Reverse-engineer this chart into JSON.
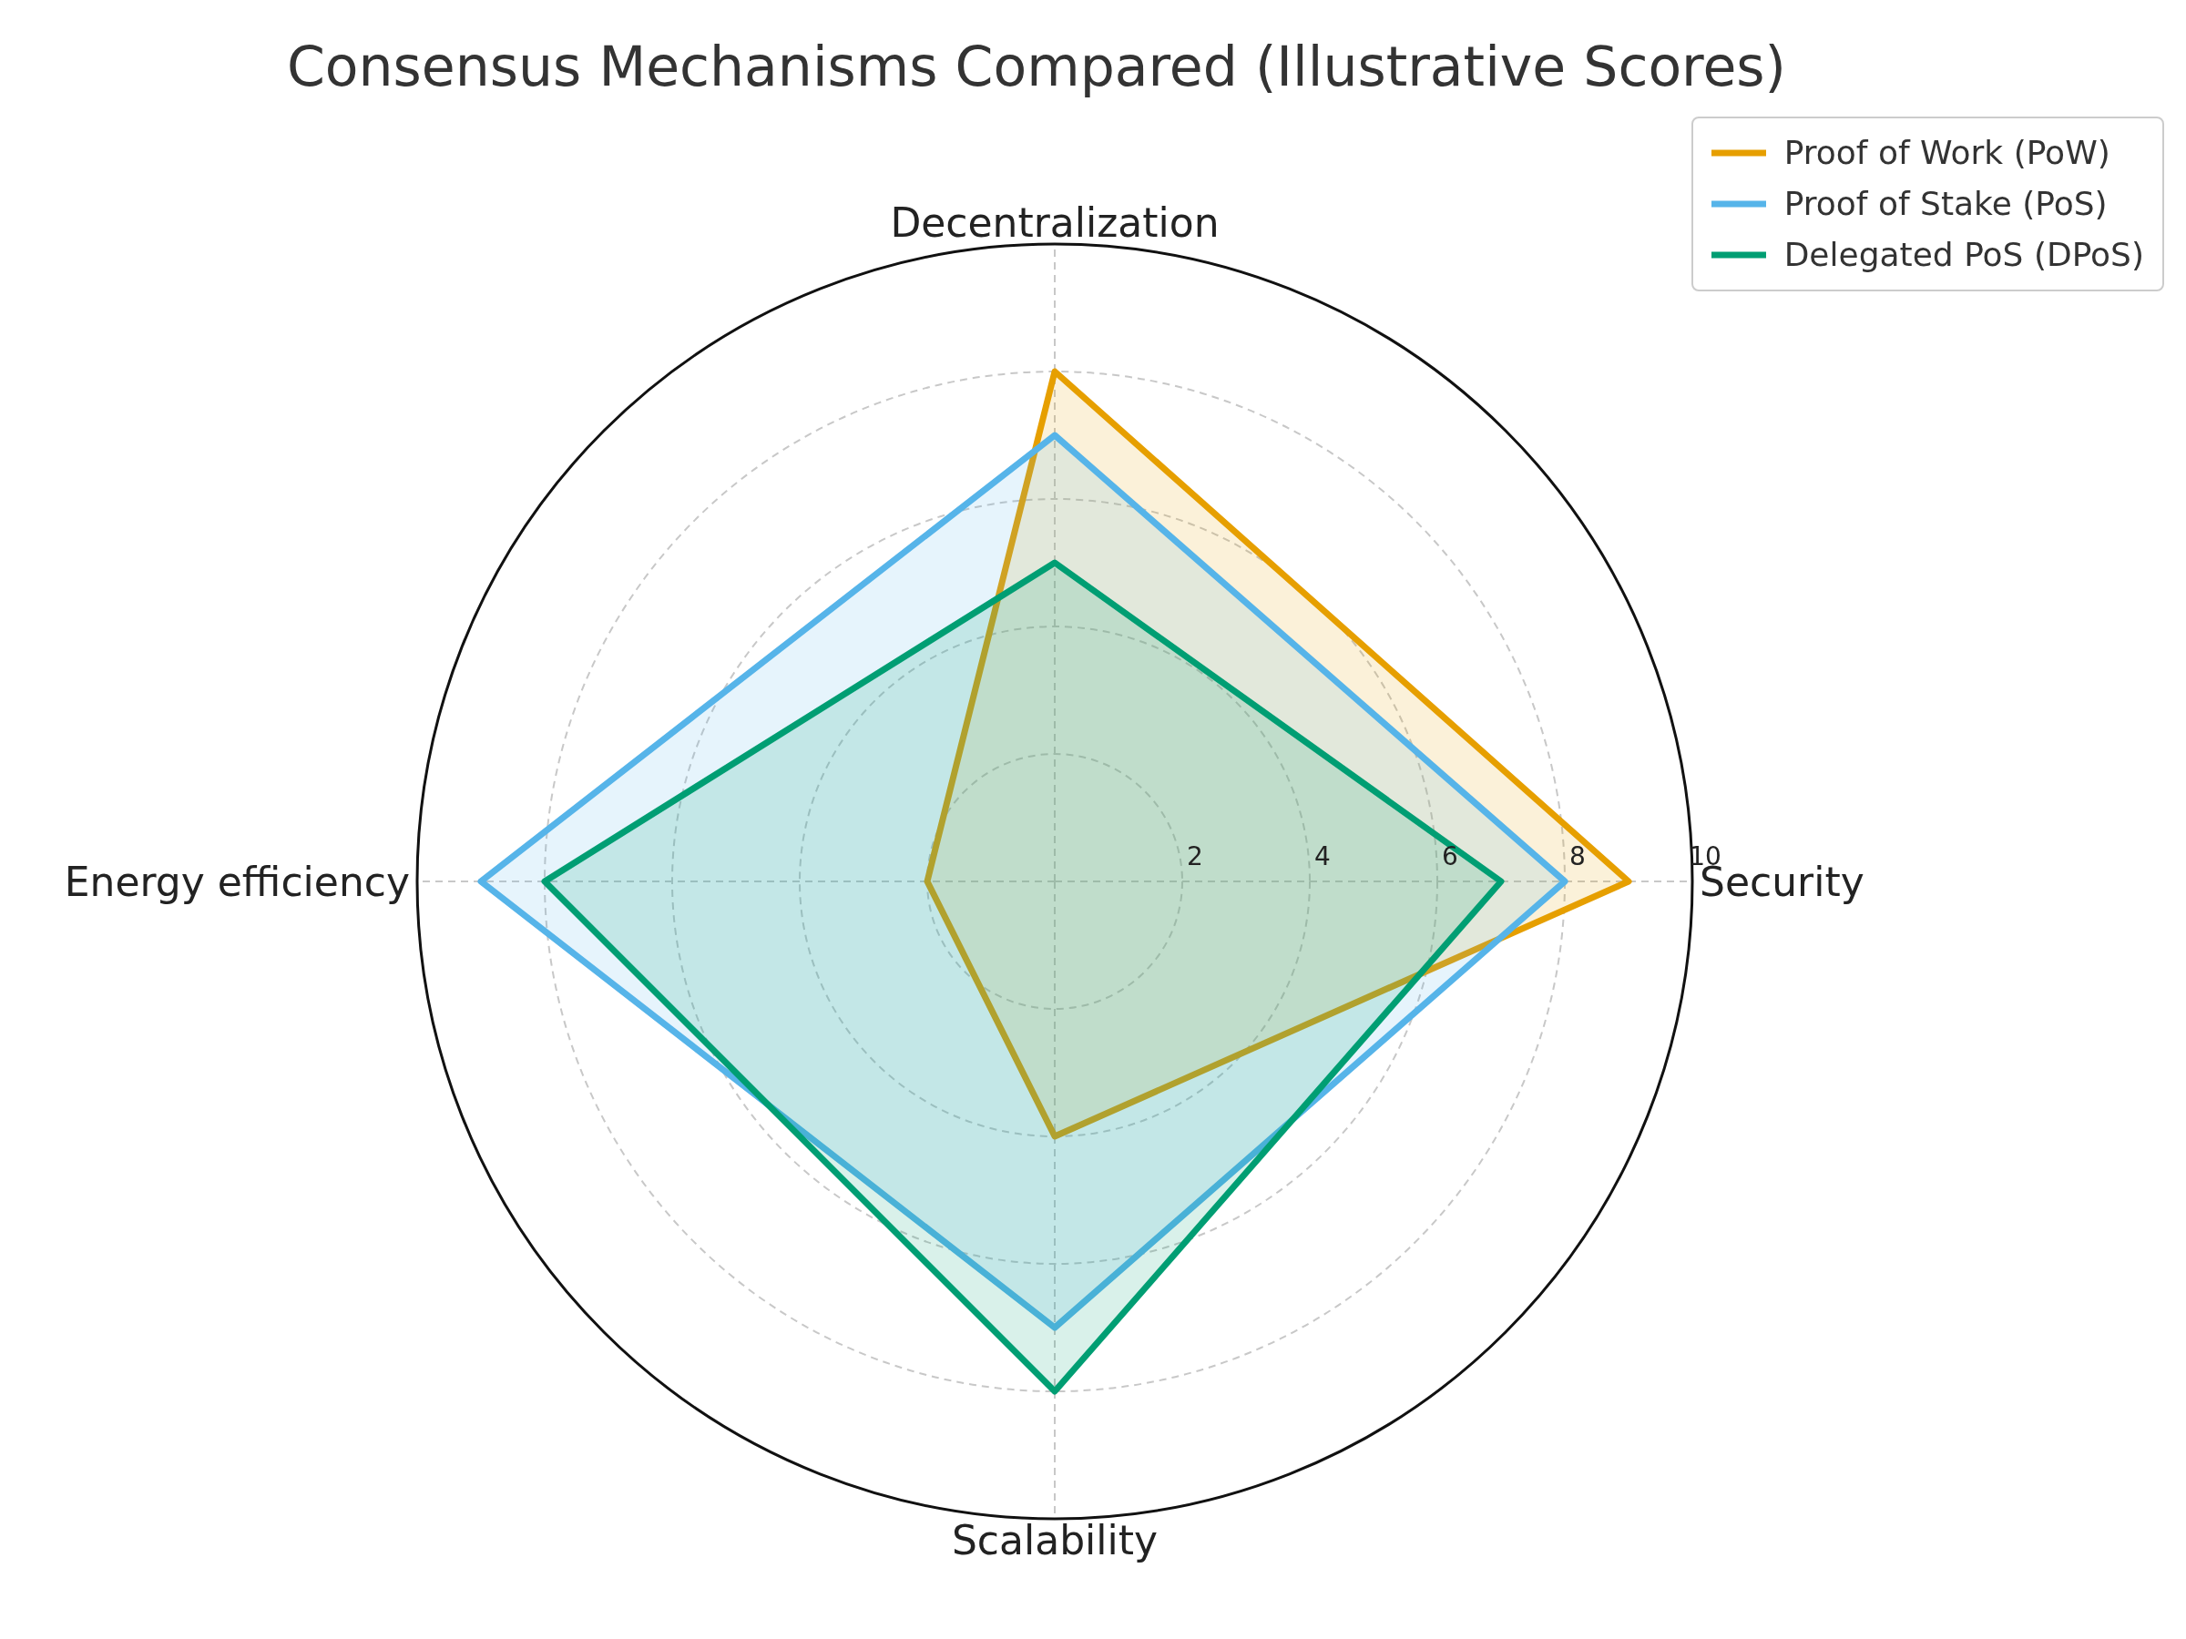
{
  "chart_data": {
    "type": "radar",
    "title": "Consensus Mechanisms Compared (Illustrative Scores)",
    "categories": [
      "Decentralization",
      "Security",
      "Scalability",
      "Energy efficiency"
    ],
    "series": [
      {
        "name": "Proof of Work (PoW)",
        "color": "#e69f00",
        "values": [
          8,
          9,
          4,
          2
        ]
      },
      {
        "name": "Proof of Stake (PoS)",
        "color": "#56b4e9",
        "values": [
          7,
          8,
          7,
          9
        ]
      },
      {
        "name": "Delegated PoS (DPoS)",
        "color": "#009e73",
        "values": [
          5,
          7,
          8,
          8
        ]
      }
    ],
    "ylim": [
      0,
      10
    ],
    "yticks": [
      2,
      4,
      6,
      8,
      10
    ],
    "grid": true,
    "legend": "top right",
    "marker": "none",
    "line_style": "solid"
  }
}
